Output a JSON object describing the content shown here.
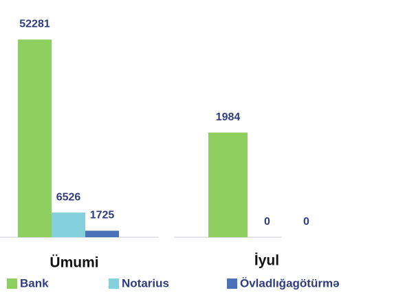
{
  "chart_data": [
    {
      "type": "bar",
      "category": "Ümumi",
      "values": [
        52281,
        6526,
        1725
      ],
      "ylim": [
        0,
        60000
      ]
    },
    {
      "type": "bar",
      "category": "İyul",
      "values": [
        1984,
        0,
        0
      ],
      "ylim": [
        0,
        4300
      ]
    }
  ],
  "legend": {
    "names": [
      "Bank",
      "Notarius",
      "Övladlığagötürmə"
    ],
    "colors": [
      "#8fcf5f",
      "#84d0dc",
      "#4a72b8"
    ]
  }
}
